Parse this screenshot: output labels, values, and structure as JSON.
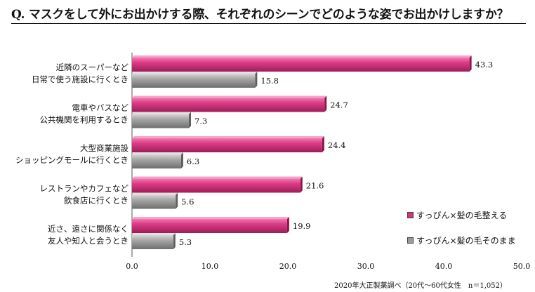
{
  "header": {
    "title": "Q. マスクをして外にお出かけする際、それぞれのシーンでどのような姿でお出かけしますか？"
  },
  "footer": {
    "source": "2020年大正製薬調べ（20代～60代女性　n＝1,052）"
  },
  "colors": {
    "pink": "#d4327a",
    "gray": "#9a9a9a"
  },
  "chart_data": {
    "type": "bar",
    "orientation": "horizontal",
    "title": "",
    "xlabel": "",
    "ylabel": "",
    "categories": [
      [
        "近隣のスーパーなど",
        "日常で使う施設に行くとき"
      ],
      [
        "電車やバスなど",
        "公共機関を利用するとき"
      ],
      [
        "大型商業施設",
        "ショッピングモールに行くとき"
      ],
      [
        "レストランやカフェなど",
        "飲食店に行くとき"
      ],
      [
        "近さ、遠さに関係なく",
        "友人や知人と会うとき"
      ]
    ],
    "series": [
      {
        "name": "すっぴん×髪の毛整える",
        "values": [
          43.3,
          24.7,
          24.4,
          21.6,
          19.9
        ],
        "labels": [
          "43.3",
          "24.7",
          "24.4",
          "21.6",
          "19.9"
        ]
      },
      {
        "name": "すっぴん×髪の毛そのまま",
        "values": [
          15.8,
          7.3,
          6.3,
          5.6,
          5.3
        ],
        "labels": [
          "15.8",
          "7.3",
          "6.3",
          "5.6",
          "5.3"
        ]
      }
    ],
    "xlim": [
      0,
      50
    ],
    "xticks": [
      "0.0",
      "10.0",
      "20.0",
      "30.0",
      "40.0",
      "50.0"
    ],
    "grid": false,
    "legend_position": "bottom-right"
  }
}
